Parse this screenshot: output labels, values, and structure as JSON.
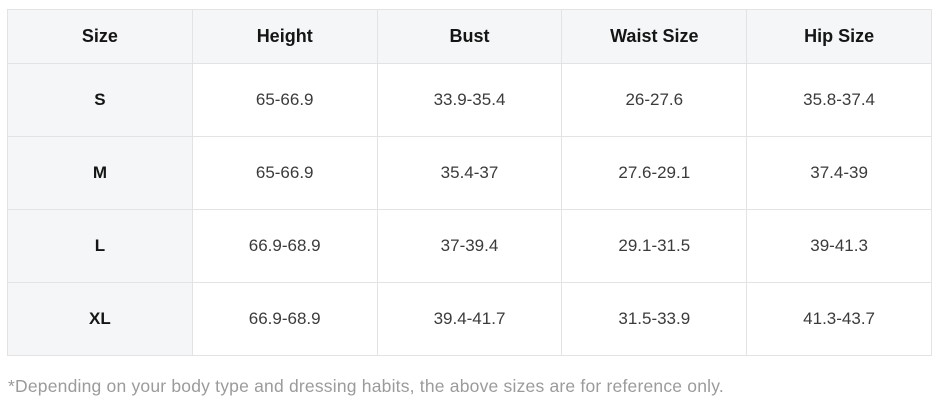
{
  "table": {
    "columns": [
      "Size",
      "Height",
      "Bust",
      "Waist Size",
      "Hip Size"
    ],
    "rows": [
      {
        "size": "S",
        "values": [
          "65-66.9",
          "33.9-35.4",
          "26-27.6",
          "35.8-37.4"
        ]
      },
      {
        "size": "M",
        "values": [
          "65-66.9",
          "35.4-37",
          "27.6-29.1",
          "37.4-39"
        ]
      },
      {
        "size": "L",
        "values": [
          "66.9-68.9",
          "37-39.4",
          "29.1-31.5",
          "39-41.3"
        ]
      },
      {
        "size": "XL",
        "values": [
          "66.9-68.9",
          "39.4-41.7",
          "31.5-33.9",
          "41.3-43.7"
        ]
      }
    ]
  },
  "footnote": "*Depending on your body type and dressing habits, the above sizes are for reference only.",
  "colors": {
    "header_bg": "#f5f6f7",
    "border": "#e3e3e3",
    "heading_text": "#151515",
    "cell_text": "#3b3b3b",
    "footnote_text": "#9b9b9b",
    "page_bg": "#ffffff"
  }
}
